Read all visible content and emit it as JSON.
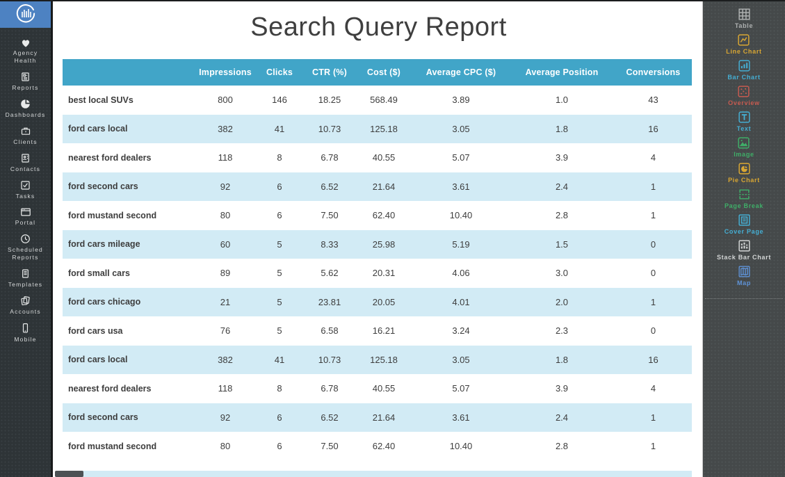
{
  "app": {
    "logo": "circular-bar-chart-logo"
  },
  "left_sidebar": {
    "items": [
      {
        "label": "Agency Health",
        "icon": "heart-icon"
      },
      {
        "label": "Reports",
        "icon": "report-icon"
      },
      {
        "label": "Dashboards",
        "icon": "pie-icon"
      },
      {
        "label": "Clients",
        "icon": "briefcase-icon"
      },
      {
        "label": "Contacts",
        "icon": "contacts-icon"
      },
      {
        "label": "Tasks",
        "icon": "checkbox-icon"
      },
      {
        "label": "Portal",
        "icon": "browser-window-icon"
      },
      {
        "label": "Scheduled Reports",
        "icon": "clock-icon"
      },
      {
        "label": "Templates",
        "icon": "document-icon"
      },
      {
        "label": "Accounts",
        "icon": "stacked-pages-icon"
      },
      {
        "label": "Mobile",
        "icon": "phone-icon"
      }
    ]
  },
  "header": {
    "title": "Search Query Report"
  },
  "table": {
    "columns": [
      "",
      "Impressions",
      "Clicks",
      "CTR (%)",
      "Cost ($)",
      "Average CPC ($)",
      "Average Position",
      "Conversions"
    ],
    "rows": [
      {
        "query": "best local SUVs",
        "impressions": "800",
        "clicks": "146",
        "ctr": "18.25",
        "cost": "568.49",
        "avg_cpc": "3.89",
        "avg_position": "1.0",
        "conversions": "43"
      },
      {
        "query": "ford cars local",
        "impressions": "382",
        "clicks": "41",
        "ctr": "10.73",
        "cost": "125.18",
        "avg_cpc": "3.05",
        "avg_position": "1.8",
        "conversions": "16"
      },
      {
        "query": "nearest ford dealers",
        "impressions": "118",
        "clicks": "8",
        "ctr": "6.78",
        "cost": "40.55",
        "avg_cpc": "5.07",
        "avg_position": "3.9",
        "conversions": "4"
      },
      {
        "query": "ford second cars",
        "impressions": "92",
        "clicks": "6",
        "ctr": "6.52",
        "cost": "21.64",
        "avg_cpc": "3.61",
        "avg_position": "2.4",
        "conversions": "1"
      },
      {
        "query": "ford mustand second",
        "impressions": "80",
        "clicks": "6",
        "ctr": "7.50",
        "cost": "62.40",
        "avg_cpc": "10.40",
        "avg_position": "2.8",
        "conversions": "1"
      },
      {
        "query": "ford cars mileage",
        "impressions": "60",
        "clicks": "5",
        "ctr": "8.33",
        "cost": "25.98",
        "avg_cpc": "5.19",
        "avg_position": "1.5",
        "conversions": "0"
      },
      {
        "query": "ford small cars",
        "impressions": "89",
        "clicks": "5",
        "ctr": "5.62",
        "cost": "20.31",
        "avg_cpc": "4.06",
        "avg_position": "3.0",
        "conversions": "0"
      },
      {
        "query": "ford cars chicago",
        "impressions": "21",
        "clicks": "5",
        "ctr": "23.81",
        "cost": "20.05",
        "avg_cpc": "4.01",
        "avg_position": "2.0",
        "conversions": "1"
      },
      {
        "query": "ford cars usa",
        "impressions": "76",
        "clicks": "5",
        "ctr": "6.58",
        "cost": "16.21",
        "avg_cpc": "3.24",
        "avg_position": "2.3",
        "conversions": "0"
      },
      {
        "query": "ford cars local",
        "impressions": "382",
        "clicks": "41",
        "ctr": "10.73",
        "cost": "125.18",
        "avg_cpc": "3.05",
        "avg_position": "1.8",
        "conversions": "16"
      },
      {
        "query": "nearest ford dealers",
        "impressions": "118",
        "clicks": "8",
        "ctr": "6.78",
        "cost": "40.55",
        "avg_cpc": "5.07",
        "avg_position": "3.9",
        "conversions": "4"
      },
      {
        "query": "ford second cars",
        "impressions": "92",
        "clicks": "6",
        "ctr": "6.52",
        "cost": "21.64",
        "avg_cpc": "3.61",
        "avg_position": "2.4",
        "conversions": "1"
      },
      {
        "query": "ford mustand second",
        "impressions": "80",
        "clicks": "6",
        "ctr": "7.50",
        "cost": "62.40",
        "avg_cpc": "10.40",
        "avg_position": "2.8",
        "conversions": "1"
      }
    ]
  },
  "right_sidebar": {
    "tools": [
      {
        "label": "Table",
        "color": "#aeb1b1",
        "icon": "table-icon"
      },
      {
        "label": "Line Chart",
        "color": "#d9a733",
        "icon": "line-chart-icon"
      },
      {
        "label": "Bar Chart",
        "color": "#45aed3",
        "icon": "bar-chart-icon"
      },
      {
        "label": "Overview",
        "color": "#c75b50",
        "icon": "scatter-icon"
      },
      {
        "label": "Text",
        "color": "#45aed3",
        "icon": "text-icon"
      },
      {
        "label": "Image",
        "color": "#3fae68",
        "icon": "image-icon"
      },
      {
        "label": "Pie Chart",
        "color": "#d9a733",
        "icon": "pie-chart-icon"
      },
      {
        "label": "Page Break",
        "color": "#3fae68",
        "icon": "page-break-icon"
      },
      {
        "label": "Cover Page",
        "color": "#45aed3",
        "icon": "cover-page-icon"
      },
      {
        "label": "Stack Bar Chart",
        "color": "#d3d6d6",
        "icon": "stack-bar-chart-icon"
      },
      {
        "label": "Map",
        "color": "#5f93d8",
        "icon": "map-icon"
      }
    ]
  },
  "colors": {
    "table_header": "#41a5c8",
    "row_alt": "#d2ebf5",
    "logo_bg": "#4d82c2",
    "left_sidebar_bg": "#2e3437",
    "right_sidebar_bg": "#45494a"
  }
}
